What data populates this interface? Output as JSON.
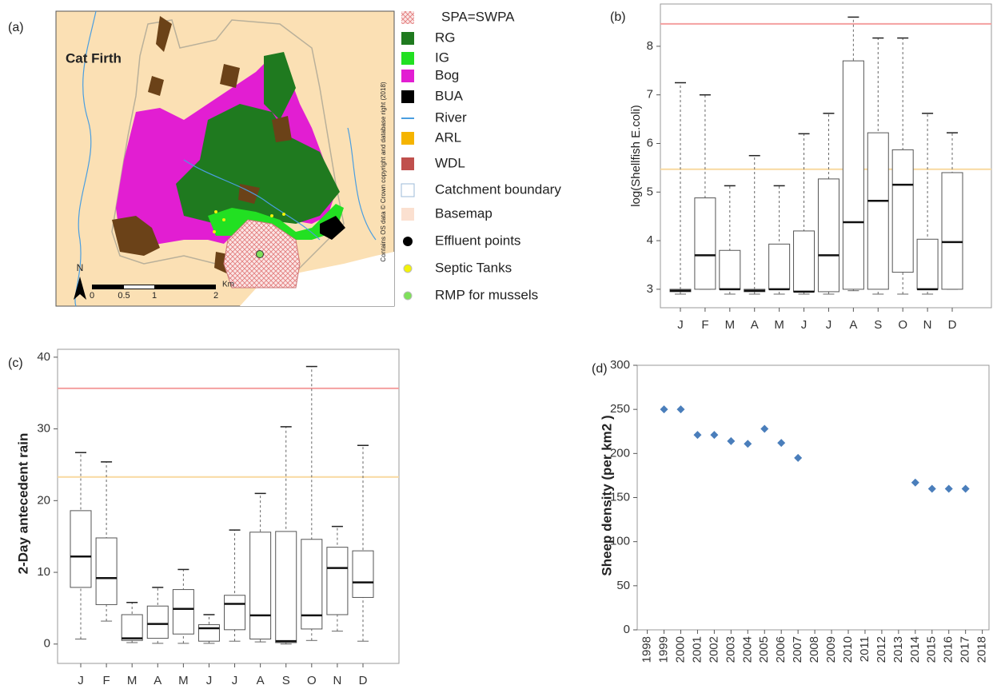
{
  "map": {
    "label": "(a)",
    "place": "Cat Firth",
    "north": "N",
    "scale_labels": [
      "0",
      "0.5",
      "1",
      "2"
    ],
    "scale_unit": "Km",
    "copyright": "Contains OS data © Crown copyright and database right (2018)",
    "legend": [
      {
        "label": "SPA=SWPA",
        "color": "#e8a0a0"
      },
      {
        "label": "RG",
        "color": "#1f7a1f"
      },
      {
        "label": "IG",
        "color": "#22e022"
      },
      {
        "label": "Bog",
        "color": "#e21ed2"
      },
      {
        "label": "BUA",
        "color": "#000000"
      },
      {
        "label": "River",
        "color": "#4a9ee0"
      },
      {
        "label": "ARL",
        "color": "#f5b400"
      },
      {
        "label": "WDL",
        "color": "#c0504d"
      },
      {
        "label": "Catchment boundary",
        "color": "#9dbbd8"
      },
      {
        "label": "Basemap",
        "color": "#fbe0d0"
      },
      {
        "label": "Effluent points",
        "color": "#000000"
      },
      {
        "label": "Septic Tanks",
        "color": "#f2f20a"
      },
      {
        "label": "RMP for mussels",
        "color": "#7ee05a"
      }
    ]
  },
  "chart_data": [
    {
      "type": "box",
      "label": "(b)",
      "y_label": "log(Shellfish E.coli)",
      "categories": [
        "J",
        "F",
        "M",
        "A",
        "M",
        "J",
        "J",
        "A",
        "S",
        "O",
        "N",
        "D"
      ],
      "whisker_low": [
        2.9,
        3.0,
        2.9,
        2.9,
        2.9,
        2.9,
        2.9,
        2.97,
        2.9,
        2.9,
        2.9,
        3.0
      ],
      "q1": [
        2.95,
        3.0,
        3.0,
        2.95,
        3.0,
        2.95,
        2.95,
        3.0,
        3.0,
        3.35,
        3.0,
        3.0
      ],
      "median": [
        2.97,
        3.7,
        3.0,
        2.97,
        3.0,
        2.95,
        3.7,
        4.38,
        4.82,
        5.15,
        3.0,
        3.97
      ],
      "q3": [
        3.0,
        4.88,
        3.8,
        3.0,
        3.93,
        4.2,
        5.27,
        7.7,
        6.22,
        5.87,
        4.03,
        5.4
      ],
      "whisker_high": [
        7.25,
        7.0,
        5.13,
        5.75,
        5.13,
        6.2,
        6.62,
        8.6,
        8.17,
        8.17,
        6.62,
        6.22
      ],
      "reference_lines": [
        {
          "value": 8.46,
          "color": "#f4a0a0"
        },
        {
          "value": 5.47,
          "color": "#f8d9a0"
        }
      ],
      "ylim": [
        2.62,
        8.87
      ],
      "yticks": [
        3,
        4,
        5,
        6,
        7,
        8
      ]
    },
    {
      "type": "box",
      "label": "(c)",
      "y_label": "2-Day antecedent rain",
      "categories": [
        "J",
        "F",
        "M",
        "A",
        "M",
        "J",
        "J",
        "A",
        "S",
        "O",
        "N",
        "D"
      ],
      "whisker_low": [
        0.7,
        3.2,
        0.2,
        0.1,
        0.1,
        0.1,
        0.4,
        0.3,
        0.0,
        0.5,
        1.8,
        0.4
      ],
      "q1": [
        7.9,
        5.5,
        0.5,
        0.8,
        1.4,
        0.4,
        2.0,
        0.7,
        0.2,
        2.1,
        4.1,
        6.5
      ],
      "median": [
        12.2,
        9.2,
        0.8,
        2.8,
        4.9,
        2.2,
        5.6,
        4.0,
        0.4,
        4.0,
        10.6,
        8.6
      ],
      "q3": [
        18.6,
        14.8,
        4.1,
        5.3,
        7.6,
        2.7,
        6.8,
        15.6,
        15.7,
        14.6,
        13.5,
        13.0
      ],
      "whisker_high": [
        26.7,
        25.4,
        5.8,
        7.9,
        10.4,
        4.1,
        15.9,
        21.0,
        30.3,
        38.7,
        16.4,
        27.7
      ],
      "reference_lines": [
        {
          "value": 35.65,
          "color": "#f4a0a0"
        },
        {
          "value": 23.3,
          "color": "#f8d9a0"
        }
      ],
      "ylim": [
        -2.7,
        41.1
      ],
      "yticks": [
        0,
        10,
        20,
        30,
        40
      ]
    },
    {
      "type": "scatter",
      "label": "(d)",
      "y_label": "Sheep density (per km2 )",
      "color": "#4a7ebb",
      "x": [
        1999,
        2000,
        2001,
        2002,
        2003,
        2004,
        2005,
        2006,
        2007,
        2014,
        2015,
        2016,
        2017
      ],
      "values": [
        250,
        250,
        221,
        221,
        214,
        211,
        228,
        212,
        195,
        167,
        160,
        160,
        160
      ],
      "xlim": [
        1997.4,
        2018.4
      ],
      "xticks": [
        1998,
        1999,
        2000,
        2001,
        2002,
        2003,
        2004,
        2005,
        2006,
        2007,
        2008,
        2009,
        2010,
        2011,
        2012,
        2013,
        2014,
        2015,
        2016,
        2017,
        2018
      ],
      "ylim": [
        0,
        300
      ],
      "yticks": [
        0,
        50,
        100,
        150,
        200,
        250,
        300
      ]
    }
  ]
}
